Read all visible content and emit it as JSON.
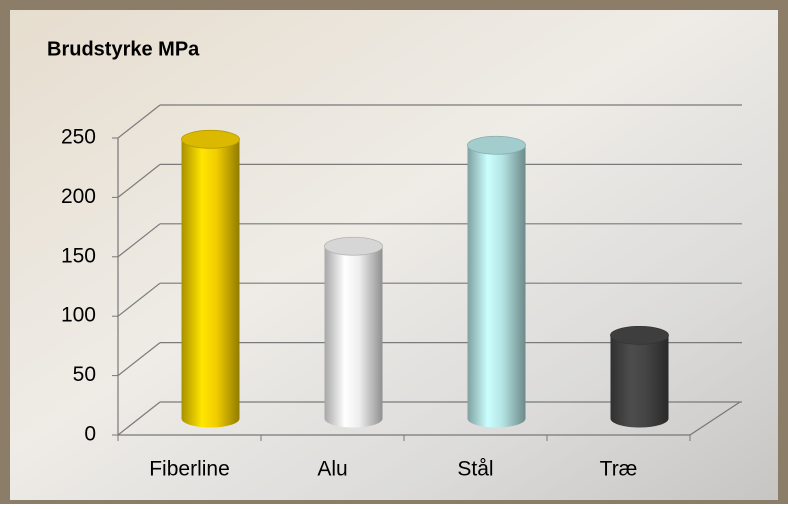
{
  "chart_data": {
    "type": "bar",
    "title": "Brudstyrke MPa",
    "categories": [
      "Fiberline",
      "Alu",
      "Stål",
      "Træ"
    ],
    "values": [
      235,
      145,
      230,
      70
    ],
    "colors": [
      "#f2cd00",
      "#eeeeee",
      "#b5e4e4",
      "#454545"
    ],
    "ylim": [
      0,
      250
    ],
    "yticks": [
      0,
      50,
      100,
      150,
      200,
      250
    ],
    "grid": true
  }
}
